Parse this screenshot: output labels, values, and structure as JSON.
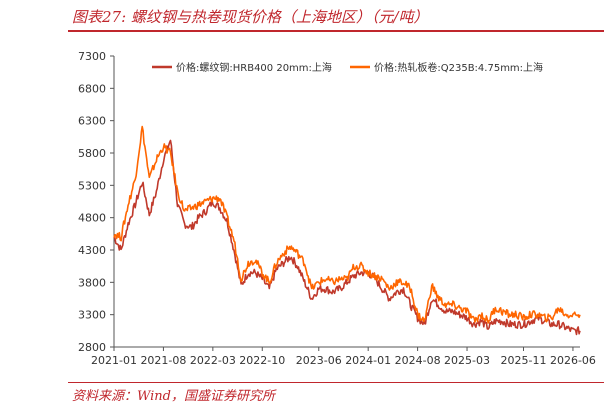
{
  "title": "图表27: 螺纹钢与热卷现货价格（上海地区）（元/吨）",
  "source": "资料来源：Wind，国盛证券研究所",
  "colors": {
    "accent": "#c0272d",
    "rebar": "#c0392b",
    "hrc": "#ff6600"
  },
  "chart_data": {
    "type": "line",
    "title": "",
    "xlabel": "",
    "ylabel": "",
    "ylim": [
      2800,
      7300
    ],
    "yticks": [
      2800,
      3300,
      3800,
      4300,
      4800,
      5300,
      5800,
      6300,
      6800,
      7300
    ],
    "xlim": [
      "2021-01",
      "2026-07"
    ],
    "xticks": [
      "2021-01",
      "2021-08",
      "2022-03",
      "2022-10",
      "2023-06",
      "2024-01",
      "2024-08",
      "2025-03",
      "2025-11",
      "2026-06"
    ],
    "grid": false,
    "legend": "top-right",
    "x": [
      "2021-01",
      "2021-02",
      "2021-03",
      "2021-04",
      "2021-05",
      "2021-06",
      "2021-07",
      "2021-08",
      "2021-09",
      "2021-10",
      "2021-11",
      "2021-12",
      "2022-01",
      "2022-02",
      "2022-03",
      "2022-04",
      "2022-05",
      "2022-06",
      "2022-07",
      "2022-08",
      "2022-09",
      "2022-10",
      "2022-11",
      "2022-12",
      "2023-01",
      "2023-02",
      "2023-03",
      "2023-04",
      "2023-05",
      "2023-06",
      "2023-07",
      "2023-08",
      "2023-09",
      "2023-10",
      "2023-11",
      "2023-12",
      "2024-01",
      "2024-02",
      "2024-03",
      "2024-04",
      "2024-05",
      "2024-06",
      "2024-07",
      "2024-08",
      "2024-09",
      "2024-10",
      "2024-11",
      "2024-12",
      "2025-01",
      "2025-02",
      "2025-03",
      "2025-04",
      "2025-05",
      "2025-06",
      "2025-07",
      "2025-08",
      "2025-09",
      "2025-10",
      "2025-11",
      "2025-12",
      "2026-01",
      "2026-02",
      "2026-03",
      "2026-04",
      "2026-05",
      "2026-06",
      "2026-07"
    ],
    "series": [
      {
        "name": "价格:螺纹钢:HRB400 20mm:上海",
        "values": [
          4500,
          4300,
          4700,
          5000,
          5350,
          4850,
          5200,
          5700,
          6000,
          5000,
          4700,
          4650,
          4800,
          4900,
          5050,
          4950,
          4750,
          4300,
          3750,
          3950,
          3950,
          3850,
          3700,
          4000,
          4100,
          4200,
          4050,
          3800,
          3550,
          3700,
          3700,
          3650,
          3700,
          3800,
          3900,
          3950,
          3950,
          3850,
          3700,
          3550,
          3650,
          3700,
          3450,
          3250,
          3150,
          3550,
          3450,
          3350,
          3350,
          3300,
          3250,
          3150,
          3200,
          3100,
          3200,
          3200,
          3150,
          3150,
          3150,
          3200,
          3250,
          3200,
          3150,
          3150,
          3100,
          3050,
          3050
        ]
      },
      {
        "name": "价格:热轧板卷:Q235B:4.75mm:上海",
        "values": [
          4550,
          4500,
          5000,
          5400,
          6200,
          5400,
          5700,
          5900,
          5800,
          5200,
          4900,
          4950,
          5000,
          5050,
          5100,
          5100,
          4800,
          4450,
          3850,
          4100,
          4150,
          3950,
          3800,
          4100,
          4250,
          4350,
          4250,
          4100,
          3700,
          3800,
          3850,
          3800,
          3850,
          3850,
          4050,
          4050,
          3950,
          3900,
          3850,
          3700,
          3800,
          3800,
          3700,
          3300,
          3200,
          3750,
          3550,
          3450,
          3450,
          3400,
          3350,
          3200,
          3300,
          3200,
          3400,
          3350,
          3300,
          3300,
          3250,
          3300,
          3300,
          3250,
          3250,
          3400,
          3300,
          3300,
          3300
        ]
      }
    ]
  }
}
